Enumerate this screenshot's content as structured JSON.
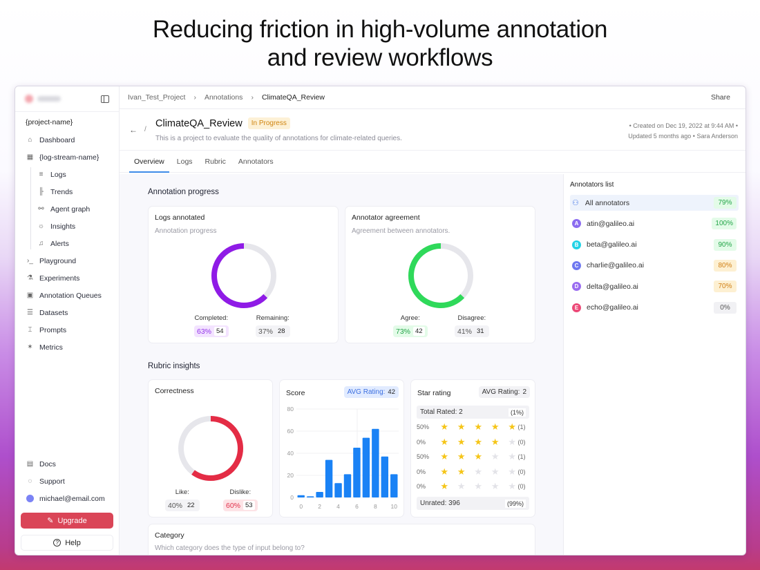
{
  "hero": {
    "line1": "Reducing friction in high-volume annotation",
    "line2": "and review workflows"
  },
  "sidebar": {
    "project_name": "{project-name}",
    "items": [
      {
        "label": "Dashboard",
        "icon": "home-icon"
      },
      {
        "label": "{log-stream-name}",
        "icon": "grid-icon"
      },
      {
        "label": "Logs",
        "icon": "list-icon",
        "sub": true
      },
      {
        "label": "Trends",
        "icon": "bar-chart-icon",
        "sub": true
      },
      {
        "label": "Agent graph",
        "icon": "graph-icon",
        "sub": true
      },
      {
        "label": "Insights",
        "icon": "lightbulb-icon",
        "sub": true
      },
      {
        "label": "Alerts",
        "icon": "bell-icon",
        "sub": true
      },
      {
        "label": "Playground",
        "icon": "terminal-icon"
      },
      {
        "label": "Experiments",
        "icon": "flask-icon"
      },
      {
        "label": "Annotation Queues",
        "icon": "queue-icon"
      },
      {
        "label": "Datasets",
        "icon": "database-icon"
      },
      {
        "label": "Prompts",
        "icon": "bracket-icon"
      },
      {
        "label": "Metrics",
        "icon": "metrics-icon"
      }
    ],
    "bottom": {
      "docs": "Docs",
      "support": "Support",
      "user": "michael@email.com",
      "upgrade": "Upgrade",
      "help": "Help"
    }
  },
  "breadcrumb": {
    "items": [
      "Ivan_Test_Project",
      "Annotations",
      "ClimateQA_Review"
    ],
    "share": "Share"
  },
  "header": {
    "title": "ClimateQA_Review",
    "status": "In Progress",
    "description": "This is a project to evaluate the quality of annotations for climate-related queries.",
    "meta_line1": "• Created on Dec 19, 2022 at 9:44 AM •",
    "meta_line2": "Updated 5 months ago • Sara Anderson"
  },
  "tabs": [
    "Overview",
    "Logs",
    "Rubric",
    "Annotators"
  ],
  "annotation_progress": {
    "section_title": "Annotation progress",
    "logs_annotated": {
      "title": "Logs annotated",
      "subtitle": "Annotation progress",
      "completed_label": "Completed:",
      "completed_pct": "63%",
      "completed_n": "54",
      "remaining_label": "Remaining:",
      "remaining_pct": "37%",
      "remaining_n": "28",
      "color": "#8f1be6"
    },
    "agreement": {
      "title": "Annotator agreement",
      "subtitle": "Agreement between annotators.",
      "agree_label": "Agree:",
      "agree_pct": "73%",
      "agree_n": "42",
      "disagree_label": "Disagree:",
      "disagree_pct": "41%",
      "disagree_n": "31",
      "color": "#2fd95a"
    }
  },
  "rubric": {
    "section_title": "Rubric insights",
    "correctness": {
      "title": "Correctness",
      "like_label": "Like:",
      "like_pct": "40%",
      "like_n": "22",
      "dislike_label": "Dislike:",
      "dislike_pct": "60%",
      "dislike_n": "53",
      "color": "#e42c45"
    },
    "score": {
      "title": "Score",
      "avg_label": "AVG Rating:",
      "avg_value": "42"
    },
    "star_rating": {
      "title": "Star rating",
      "avg_label": "AVG Rating:",
      "avg_value": "2",
      "total_label": "Total Rated: 2",
      "total_pct": "(1%)",
      "rows": [
        {
          "pct": "50%",
          "stars": 5,
          "count": "(1)"
        },
        {
          "pct": "0%",
          "stars": 4,
          "count": "(0)"
        },
        {
          "pct": "50%",
          "stars": 3,
          "count": "(1)"
        },
        {
          "pct": "0%",
          "stars": 2,
          "count": "(0)"
        },
        {
          "pct": "0%",
          "stars": 1,
          "count": "(0)"
        }
      ],
      "unrated_label": "Unrated: 396",
      "unrated_pct": "(99%)"
    },
    "category": {
      "title": "Category",
      "subtitle": "Which category does the type of input belong to?"
    }
  },
  "annotators": {
    "title": "Annotators list",
    "items": [
      {
        "name": "All annotators",
        "pct": "79%",
        "tone": "g",
        "initial": ""
      },
      {
        "name": "atin@galileo.ai",
        "pct": "100%",
        "tone": "g",
        "initial": "A",
        "color": "#8b6cf0"
      },
      {
        "name": "beta@galileo.ai",
        "pct": "90%",
        "tone": "g",
        "initial": "B",
        "color": "#22d3e6"
      },
      {
        "name": "charlie@galileo.ai",
        "pct": "80%",
        "tone": "y",
        "initial": "C",
        "color": "#6f78f0"
      },
      {
        "name": "delta@galileo.ai",
        "pct": "70%",
        "tone": "y",
        "initial": "D",
        "color": "#9a6cf0"
      },
      {
        "name": "echo@galileo.ai",
        "pct": "0%",
        "tone": "n",
        "initial": "E",
        "color": "#ec4a78"
      }
    ]
  },
  "chart_data": [
    {
      "type": "pie",
      "title": "Logs annotated",
      "labels": [
        "Completed",
        "Remaining"
      ],
      "values": [
        63,
        37
      ],
      "counts": [
        54,
        28
      ]
    },
    {
      "type": "pie",
      "title": "Annotator agreement",
      "labels": [
        "Agree",
        "Disagree"
      ],
      "values": [
        73,
        41
      ],
      "counts": [
        42,
        31
      ]
    },
    {
      "type": "pie",
      "title": "Correctness",
      "labels": [
        "Like",
        "Dislike"
      ],
      "values": [
        40,
        60
      ],
      "counts": [
        22,
        53
      ]
    },
    {
      "type": "bar",
      "title": "Score",
      "categories": [
        "0",
        "1",
        "2",
        "3",
        "4",
        "5",
        "6",
        "7",
        "8",
        "9",
        "10"
      ],
      "values": [
        2,
        1,
        5,
        34,
        13,
        21,
        45,
        54,
        62,
        37,
        21
      ],
      "xticks": [
        "0",
        "2",
        "4",
        "6",
        "8",
        "10"
      ],
      "yticks": [
        "0",
        "20",
        "40",
        "60",
        "80"
      ],
      "ylim": [
        0,
        80
      ],
      "color": "#1a82f5"
    }
  ]
}
